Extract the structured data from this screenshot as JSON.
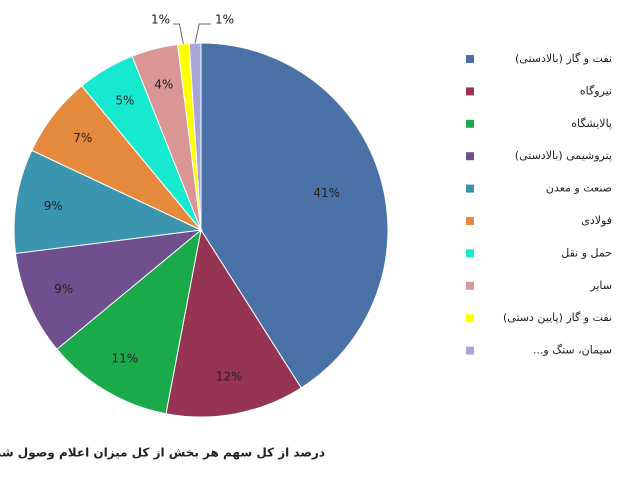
{
  "chart_data": {
    "type": "pie",
    "title": "درصد از کل سهم هر بخش از کل میزان اعلام وصول شده",
    "categories": [
      "نفت و گاز (بالادستی)",
      "نیروگاه",
      "پالایشگاه",
      "پتروشیمی (بالادستی)",
      "صنعت و معدن",
      "فولادی",
      "حمل و نقل",
      "سایر",
      "نفت و گاز (پایین دستی)",
      "سیمان، سنگ و..."
    ],
    "values": [
      41,
      12,
      11,
      9,
      9,
      7,
      5,
      4,
      1,
      1
    ],
    "value_labels": [
      "41%",
      "12%",
      "11%",
      "9%",
      "9%",
      "7%",
      "5%",
      "4%",
      "1%",
      "1%"
    ],
    "colors": [
      "#4a72a6",
      "#953553",
      "#1aaa4a",
      "#6f4f8e",
      "#3c95ae",
      "#e58a3c",
      "#17e9d0",
      "#d99694",
      "#ffff00",
      "#a6a6d9"
    ],
    "legend": "right"
  }
}
